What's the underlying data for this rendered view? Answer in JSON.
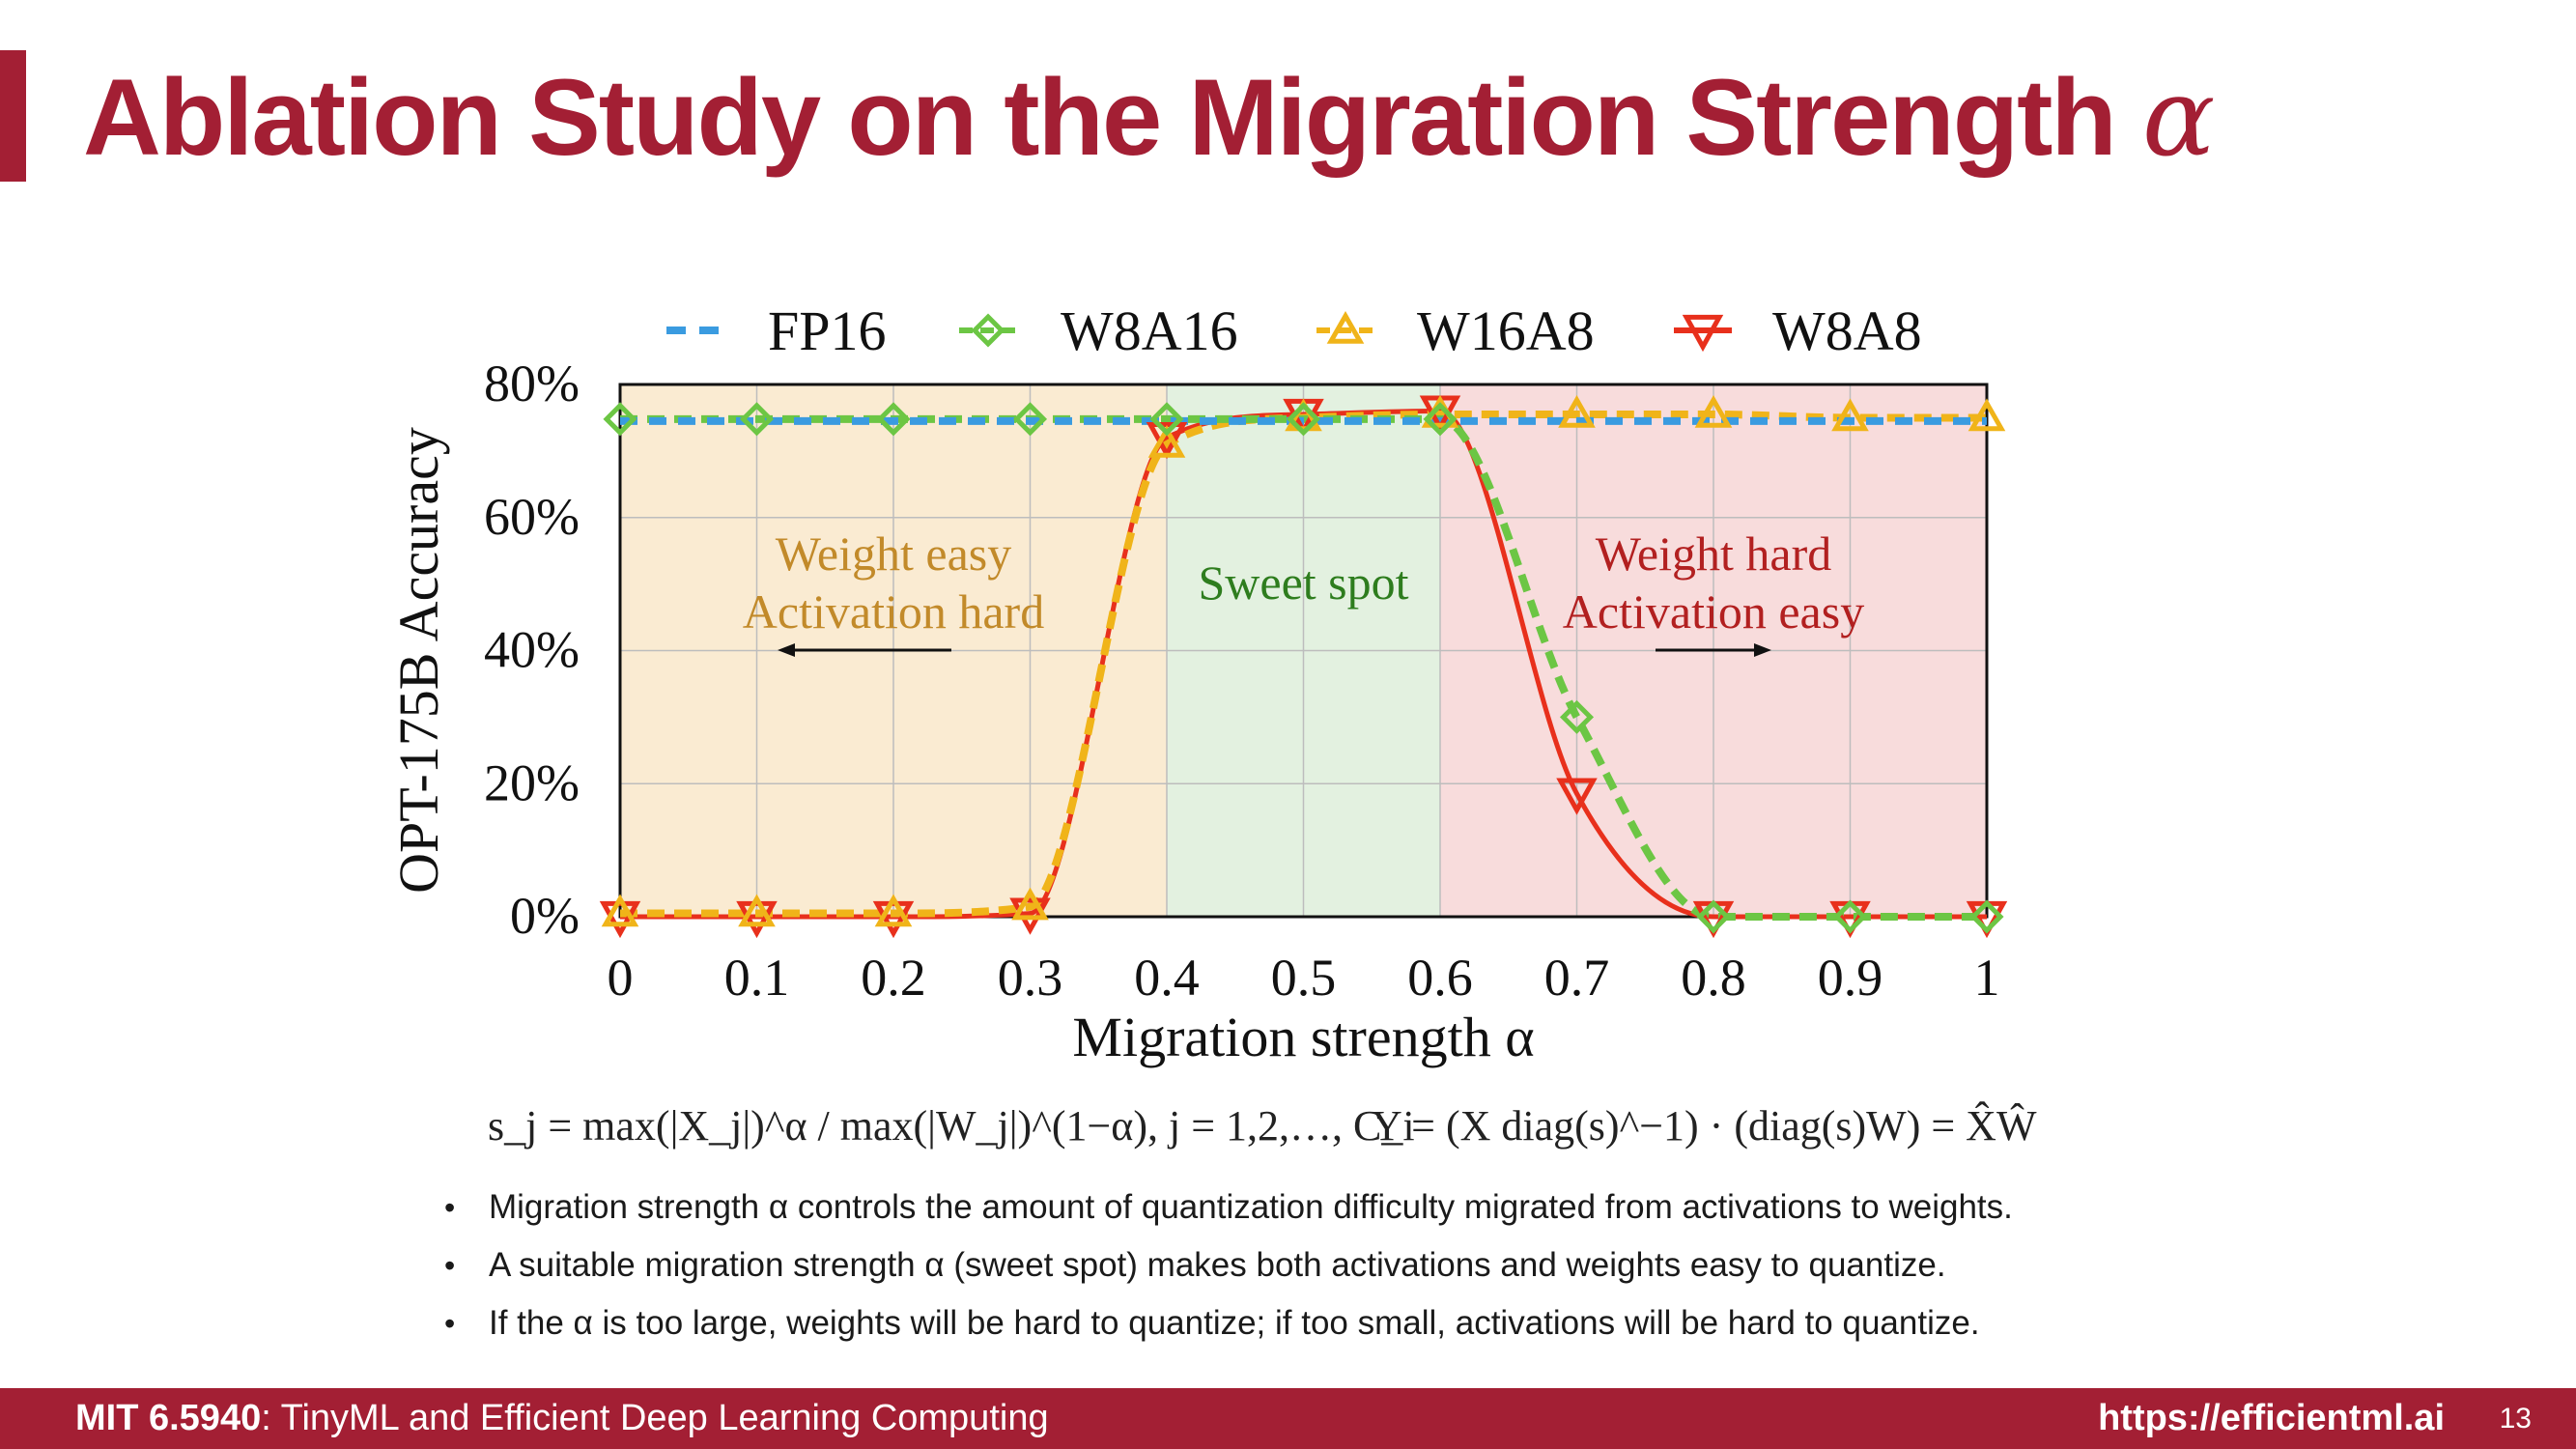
{
  "slide": {
    "title": "Ablation Study on the Migration Strength",
    "title_symbol": "α",
    "accent_color": "#a31f34"
  },
  "formulas": {
    "scale": "s_j = max(|X_j|)^α / max(|W_j|)^(1−α), j = 1,2,…, C_i",
    "output": "Y = (X diag(s)^−1) · (diag(s)W) = X̂Ŵ"
  },
  "bullets": [
    "Migration strength α controls the amount of quantization difficulty migrated from activations to weights.",
    "A suitable migration strength α (sweet spot) makes both activations and weights easy to quantize.",
    "If the α is too large, weights will be hard to quantize; if too small, activations will be hard to quantize."
  ],
  "footer": {
    "course_code": "MIT 6.5940",
    "course_name": ": TinyML and Efficient Deep Learning Computing",
    "url": "https://efficientml.ai",
    "page_number": "13"
  },
  "chart_data": {
    "type": "line",
    "xlabel": "Migration strength α",
    "ylabel": "OPT-175B Accuracy",
    "xlim": [
      0,
      1
    ],
    "ylim": [
      0,
      80
    ],
    "x_ticks": [
      "0",
      "0.1",
      "0.2",
      "0.3",
      "0.4",
      "0.5",
      "0.6",
      "0.7",
      "0.8",
      "0.9",
      "1"
    ],
    "y_ticks": [
      "0%",
      "20%",
      "40%",
      "60%",
      "80%"
    ],
    "grid": true,
    "legend_position": "top",
    "x": [
      0,
      0.1,
      0.2,
      0.3,
      0.4,
      0.5,
      0.6,
      0.7,
      0.8,
      0.9,
      1.0
    ],
    "series": [
      {
        "name": "FP16",
        "values": [
          74.5,
          74.5,
          74.5,
          74.5,
          74.5,
          74.5,
          74.5,
          74.5,
          74.5,
          74.5,
          74.5
        ],
        "color": "#3a9be0",
        "style": "dashed",
        "marker": "none"
      },
      {
        "name": "W8A16",
        "values": [
          74.8,
          74.8,
          74.8,
          74.8,
          74.8,
          74.8,
          74.8,
          30.0,
          0.0,
          0.0,
          0.0
        ],
        "color": "#6cc644",
        "style": "dashed",
        "marker": "diamond"
      },
      {
        "name": "W16A8",
        "values": [
          0.5,
          0.5,
          0.5,
          1.5,
          71.0,
          75.0,
          75.5,
          75.5,
          75.5,
          75.0,
          75.0
        ],
        "color": "#f0b419",
        "style": "dashed",
        "marker": "triangle-up"
      },
      {
        "name": "W8A8",
        "values": [
          0.0,
          0.0,
          0.0,
          0.5,
          72.0,
          75.5,
          76.0,
          18.5,
          0.0,
          0.0,
          0.0
        ],
        "color": "#e8301c",
        "style": "solid",
        "marker": "triangle-down"
      }
    ],
    "regions": [
      {
        "from": 0,
        "to": 0.4,
        "label": [
          "Weight easy",
          "Activation hard"
        ],
        "color": "#faebd2",
        "text_color": "#c28a2a",
        "arrow": "left"
      },
      {
        "from": 0.4,
        "to": 0.6,
        "label": [
          "Sweet spot"
        ],
        "color": "#e3f1e0",
        "text_color": "#2e7d1e",
        "arrow": "none"
      },
      {
        "from": 0.6,
        "to": 1.0,
        "label": [
          "Weight hard",
          "Activation easy"
        ],
        "color": "#f8dcdc",
        "text_color": "#b22020",
        "arrow": "right"
      }
    ]
  }
}
